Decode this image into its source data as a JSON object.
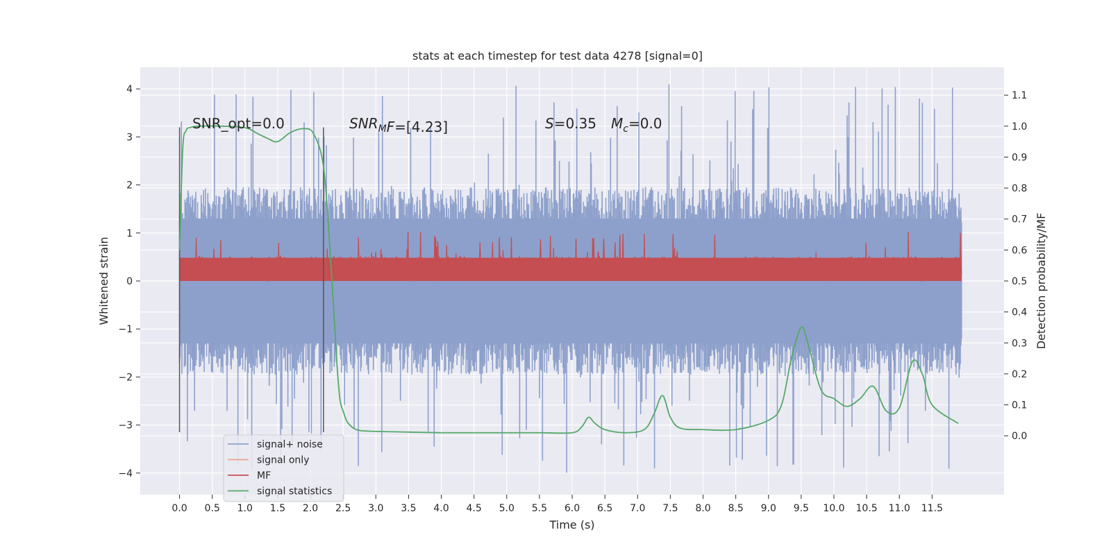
{
  "chart_data": {
    "type": "line",
    "title": "stats at each timestep for test data 4278 [signal=0]",
    "xlabel": "Time (s)",
    "ylabel": "Whitened strain",
    "y2label": "Detection probability/MF",
    "xlim": [
      -0.6,
      12.6
    ],
    "ylim": [
      -4.45,
      4.45
    ],
    "y2lim": [
      -0.19,
      1.19
    ],
    "x_ticks": [
      0.0,
      0.5,
      1.0,
      1.5,
      2.0,
      2.5,
      3.0,
      3.5,
      4.0,
      4.5,
      5.0,
      5.5,
      6.0,
      6.5,
      7.0,
      7.5,
      8.0,
      8.5,
      9.0,
      9.5,
      10.0,
      10.5,
      11.0,
      11.5
    ],
    "x_tick_labels": [
      "0.0",
      "0.5",
      "1.0",
      "1.5",
      "2.0",
      "2.5",
      "3.0",
      "3.5",
      "4.0",
      "4.5",
      "5.0",
      "5.5",
      "6.0",
      "6.5",
      "7.0",
      "7.5",
      "8.0",
      "8.5",
      "9.0",
      "9.5",
      "10.0",
      "10.5",
      "11.0",
      "11.5"
    ],
    "y_ticks": [
      -4,
      -3,
      -2,
      -1,
      0,
      1,
      2,
      3,
      4
    ],
    "y_tick_labels": [
      "−4",
      "−3",
      "−2",
      "−1",
      "0",
      "1",
      "2",
      "3",
      "4"
    ],
    "y2_ticks": [
      0.0,
      0.1,
      0.2,
      0.3,
      0.4,
      0.5,
      0.6,
      0.7,
      0.8,
      0.9,
      1.0,
      1.1
    ],
    "y2_tick_labels": [
      "0.0",
      "0.1",
      "0.2",
      "0.3",
      "0.4",
      "0.5",
      "0.6",
      "0.7",
      "0.8",
      "0.9",
      "1.0",
      "1.1"
    ],
    "grid": true,
    "legend_position": "lower-left",
    "annotations": {
      "snr_opt": "SNR_opt=0.0",
      "snr_mf_main": "SNR",
      "snr_mf_sub": "M",
      "snr_mf_rest": "F=[4.23]",
      "s_main": "S",
      "s_rest": "=0.35",
      "mc_main": "M",
      "mc_sub": "c",
      "mc_rest": "=0.0"
    },
    "vlines": {
      "x": [
        0.0,
        2.2
      ],
      "ymin": -3.15,
      "ymax": 3.2
    },
    "series": [
      {
        "name": "signal+ noise",
        "color": "#8da0cb",
        "x_range": [
          0.0,
          11.95
        ],
        "envelope": {
          "typical_low": -1.95,
          "typical_high": 1.95,
          "extreme_low": -4.05,
          "extreme_high": 4.1
        }
      },
      {
        "name": "signal only",
        "color": "#e8a589",
        "values": []
      },
      {
        "name": "MF",
        "color": "#c44e52",
        "x_range": [
          0.0,
          11.95
        ],
        "axis": "right",
        "envelope": {
          "typical_low": 0.5,
          "typical_high": 0.58,
          "extreme_high": 0.66
        }
      },
      {
        "name": "signal statistics",
        "color": "#55a868",
        "axis": "right",
        "x": [
          0.0,
          0.05,
          0.1,
          0.15,
          0.3,
          0.6,
          1.0,
          1.2,
          1.35,
          1.5,
          1.7,
          1.9,
          2.05,
          2.2,
          2.3,
          2.4,
          2.45,
          2.5,
          2.55,
          2.6,
          2.7,
          2.9,
          3.5,
          4.0,
          4.5,
          5.0,
          5.5,
          6.0,
          6.15,
          6.25,
          6.35,
          6.5,
          6.8,
          7.1,
          7.25,
          7.38,
          7.5,
          7.65,
          8.0,
          8.5,
          9.0,
          9.2,
          9.35,
          9.5,
          9.6,
          9.8,
          10.0,
          10.2,
          10.4,
          10.6,
          10.8,
          11.0,
          11.2,
          11.35,
          11.5,
          11.9
        ],
        "values": [
          0.6,
          0.93,
          0.985,
          0.995,
          1.0,
          1.0,
          0.995,
          0.975,
          0.96,
          0.95,
          0.98,
          0.992,
          0.975,
          0.87,
          0.6,
          0.25,
          0.12,
          0.08,
          0.05,
          0.035,
          0.02,
          0.015,
          0.012,
          0.01,
          0.01,
          0.01,
          0.01,
          0.01,
          0.03,
          0.06,
          0.04,
          0.02,
          0.01,
          0.02,
          0.07,
          0.13,
          0.06,
          0.025,
          0.02,
          0.02,
          0.05,
          0.1,
          0.25,
          0.35,
          0.3,
          0.15,
          0.12,
          0.095,
          0.12,
          0.16,
          0.08,
          0.09,
          0.24,
          0.2,
          0.1,
          0.04
        ]
      }
    ]
  }
}
